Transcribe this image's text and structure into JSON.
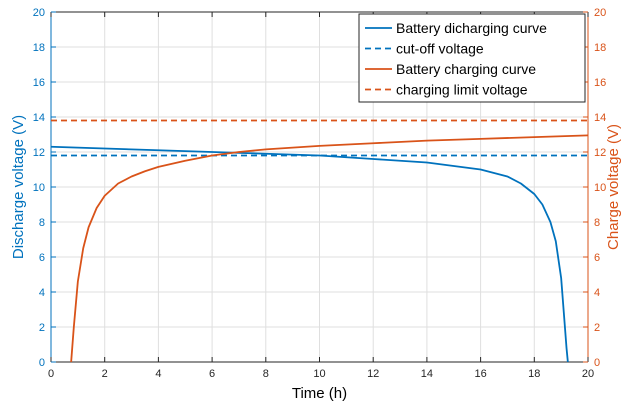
{
  "chart_data": {
    "type": "line",
    "xlabel": "Time (h)",
    "ylabel_left": "Discharge voltage (V)",
    "ylabel_right": "Charge voltage (V)",
    "xlim": [
      0,
      20
    ],
    "ylim_left": [
      0,
      20
    ],
    "ylim_right": [
      0,
      20
    ],
    "x_ticks": [
      0,
      2,
      4,
      6,
      8,
      10,
      12,
      14,
      16,
      18,
      20
    ],
    "y_ticks_left": [
      0,
      2,
      4,
      6,
      8,
      10,
      12,
      14,
      16,
      18,
      20
    ],
    "y_ticks_right": [
      0,
      2,
      4,
      6,
      8,
      10,
      12,
      14,
      16,
      18,
      20
    ],
    "grid": true,
    "legend_position": "top-right",
    "colors": {
      "discharge": "#0072BD",
      "charge": "#D95319"
    },
    "series": [
      {
        "name": "Battery dicharging curve",
        "axis": "left",
        "style": "solid",
        "color": "#0072BD",
        "x": [
          0,
          2,
          4,
          6,
          8,
          10,
          12,
          14,
          16,
          17,
          17.5,
          18,
          18.3,
          18.6,
          18.8,
          19.0,
          19.1,
          19.2,
          19.25
        ],
        "y": [
          12.3,
          12.2,
          12.1,
          12.0,
          11.9,
          11.8,
          11.6,
          11.4,
          11.0,
          10.6,
          10.2,
          9.6,
          9.0,
          8.0,
          6.9,
          4.8,
          2.8,
          0.8,
          0
        ]
      },
      {
        "name": "cut-off voltage",
        "axis": "left",
        "style": "dashed",
        "color": "#0072BD",
        "x": [
          0,
          20
        ],
        "y": [
          11.8,
          11.8
        ]
      },
      {
        "name": "Battery charging curve",
        "axis": "right",
        "style": "solid",
        "color": "#D95319",
        "x": [
          0.75,
          0.85,
          1.0,
          1.2,
          1.4,
          1.7,
          2.0,
          2.5,
          3.0,
          3.5,
          4.0,
          5.0,
          6.0,
          7.0,
          8.0,
          10.0,
          12.0,
          14.0,
          16.0,
          18.0,
          20.0
        ],
        "y": [
          0,
          2.0,
          4.6,
          6.5,
          7.7,
          8.8,
          9.5,
          10.2,
          10.6,
          10.9,
          11.15,
          11.5,
          11.8,
          12.0,
          12.15,
          12.35,
          12.5,
          12.65,
          12.75,
          12.85,
          12.95
        ]
      },
      {
        "name": "charging limit voltage",
        "axis": "right",
        "style": "dashed",
        "color": "#D95319",
        "x": [
          0,
          20
        ],
        "y": [
          13.8,
          13.8
        ]
      }
    ]
  }
}
